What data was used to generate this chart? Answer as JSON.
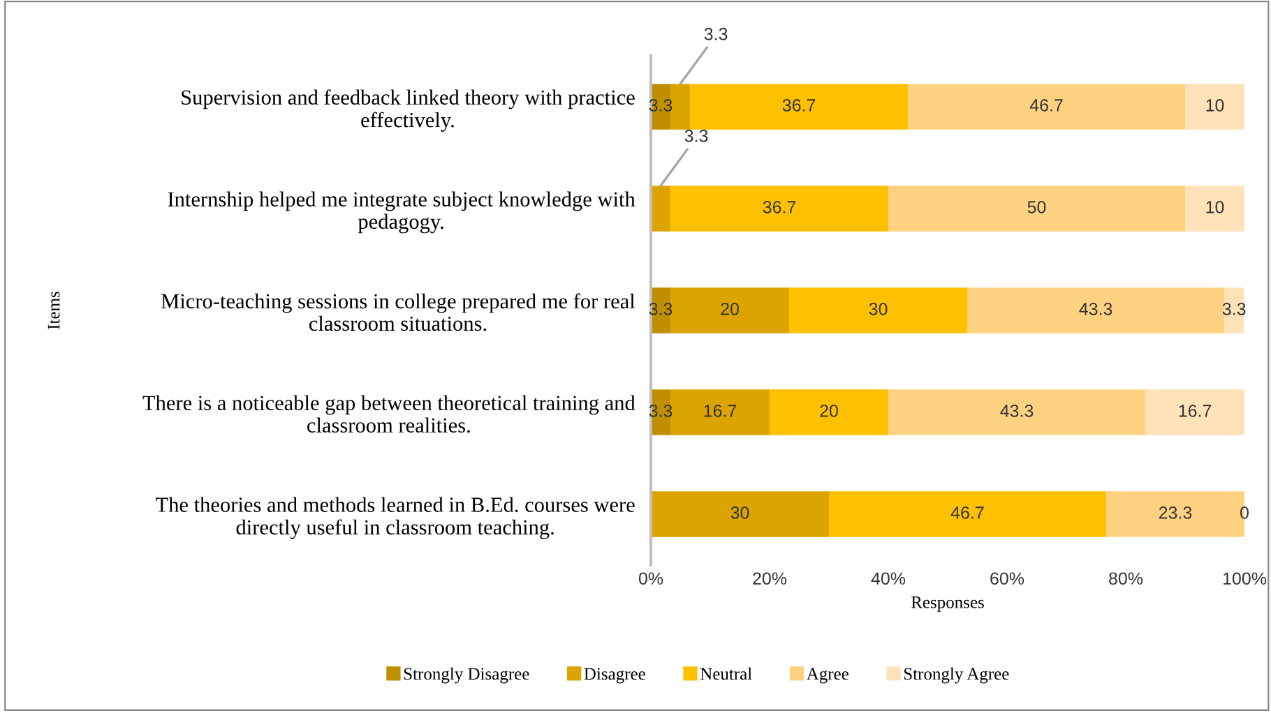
{
  "chart_data": {
    "type": "bar",
    "orientation": "horizontal",
    "stacked": true,
    "categories": [
      "Supervision and feedback linked theory with practice\neffectively.",
      "Internship helped me integrate subject knowledge with\npedagogy.",
      "Micro-teaching sessions in college prepared me for real\nclassroom situations.",
      "There is a noticeable gap between theoretical training and\nclassroom realities.",
      "The theories and methods learned in B.Ed. courses were\ndirectly useful in classroom teaching."
    ],
    "series": [
      {
        "name": "Strongly Disagree",
        "color": "#bf8f00",
        "values": [
          3.3,
          0,
          3.3,
          3.3,
          0
        ],
        "value_labels": [
          "3.3",
          null,
          "3.3",
          "3.3",
          null
        ]
      },
      {
        "name": "Disagree",
        "color": "#dba400",
        "values": [
          3.3,
          3.3,
          20,
          16.7,
          30
        ],
        "value_labels": [
          "3.3",
          "3.3",
          "20",
          "16.7",
          "30"
        ]
      },
      {
        "name": "Neutral",
        "color": "#ffc000",
        "values": [
          36.7,
          36.7,
          30,
          20,
          46.7
        ],
        "value_labels": [
          "36.7",
          "36.7",
          "30",
          "20",
          "46.7"
        ]
      },
      {
        "name": "Agree",
        "color": "#ffd281",
        "values": [
          46.7,
          50,
          43.3,
          43.3,
          23.3
        ],
        "value_labels": [
          "46.7",
          "50",
          "43.3",
          "43.3",
          "23.3"
        ]
      },
      {
        "name": "Strongly Agree",
        "color": "#ffe2b8",
        "values": [
          10,
          10,
          3.3,
          16.7,
          0
        ],
        "value_labels": [
          "10",
          "10",
          "3.3",
          "16.7",
          "0"
        ]
      }
    ],
    "xlim": [
      0,
      100
    ],
    "xticks": [
      {
        "value": 0,
        "label": "0%"
      },
      {
        "value": 20,
        "label": "20%"
      },
      {
        "value": 40,
        "label": "40%"
      },
      {
        "value": 60,
        "label": "60%"
      },
      {
        "value": 80,
        "label": "80%"
      },
      {
        "value": 100,
        "label": "100%"
      }
    ],
    "xlabel": "Responses",
    "ylabel": "Items",
    "legend": "bottom",
    "grid": false
  }
}
